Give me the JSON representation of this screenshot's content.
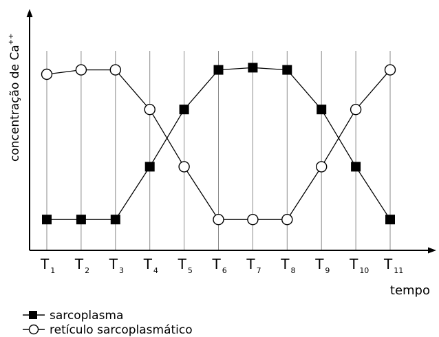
{
  "chart_data": {
    "type": "line",
    "ylabel_main": "concentração de Ca",
    "ylabel_sup": "++",
    "xlabel": "tempo",
    "categories": [
      {
        "base": "T",
        "sub": "1"
      },
      {
        "base": "T",
        "sub": "2"
      },
      {
        "base": "T",
        "sub": "3"
      },
      {
        "base": "T",
        "sub": "4"
      },
      {
        "base": "T",
        "sub": "5"
      },
      {
        "base": "T",
        "sub": "6"
      },
      {
        "base": "T",
        "sub": "7"
      },
      {
        "base": "T",
        "sub": "8"
      },
      {
        "base": "T",
        "sub": "9"
      },
      {
        "base": "T",
        "sub": "10"
      },
      {
        "base": "T",
        "sub": "11"
      }
    ],
    "ylim": [
      0,
      1
    ],
    "grid": "vertical",
    "legend_position": "bottom-left",
    "series": [
      {
        "name": "sarcoplasma",
        "marker": "filled-square",
        "values": [
          0.14,
          0.14,
          0.14,
          0.38,
          0.64,
          0.82,
          0.83,
          0.82,
          0.64,
          0.38,
          0.14
        ]
      },
      {
        "name": "retículo sarcoplasmático",
        "marker": "open-circle",
        "values": [
          0.8,
          0.82,
          0.82,
          0.64,
          0.38,
          0.14,
          0.14,
          0.14,
          0.38,
          0.64,
          0.82
        ]
      }
    ]
  }
}
